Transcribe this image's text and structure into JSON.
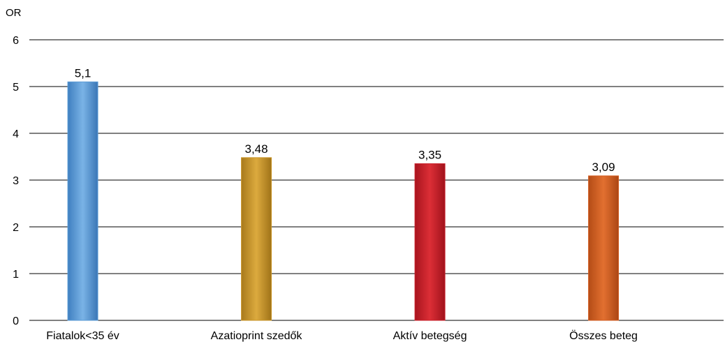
{
  "chart_data": {
    "type": "bar",
    "ylabel": "OR",
    "ylim": [
      0,
      6
    ],
    "yticks": [
      "0",
      "1",
      "2",
      "3",
      "4",
      "5",
      "6"
    ],
    "grid": true,
    "categories": [
      "Fiatalok<35 év",
      "Azatioprint szedők",
      "Aktív betegség",
      "Összes beteg"
    ],
    "values": [
      5.1,
      3.48,
      3.35,
      3.09
    ],
    "data_labels": [
      "5,1",
      "3,48",
      "3,35",
      "3,09"
    ],
    "colors": [
      "#5b9bd5",
      "#c9962a",
      "#c8202a",
      "#d35f24"
    ]
  }
}
